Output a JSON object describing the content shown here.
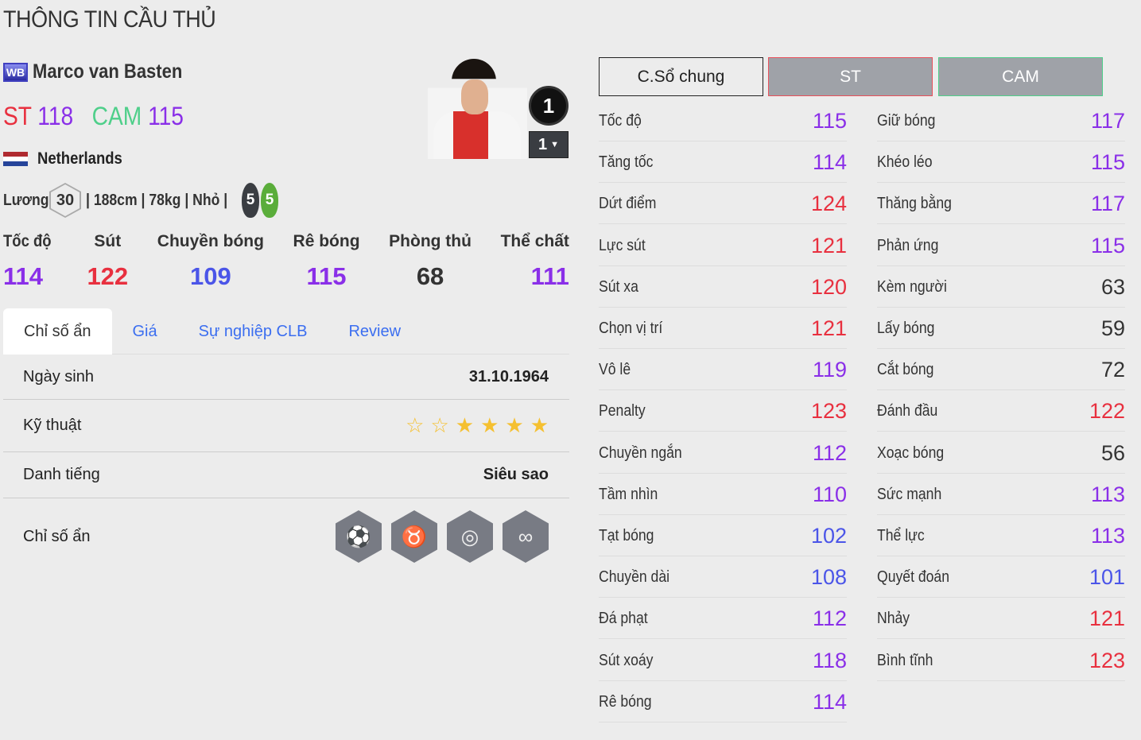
{
  "page_title": "THÔNG TIN CẦU THỦ",
  "player": {
    "season_badge": "WB",
    "name": "Marco van Basten",
    "positions": [
      {
        "pos": "ST",
        "ovr": "118",
        "pos_color": "#e8303f"
      },
      {
        "pos": "CAM",
        "ovr": "115",
        "pos_color": "#4fcf8a"
      }
    ],
    "nation": "Netherlands",
    "salary_label": "Lương",
    "salary": "30",
    "details": "| 188cm | 78kg | Nhỏ |",
    "weak_foot_left": "5",
    "weak_foot_right": "5",
    "jersey_number": "1",
    "upgrade_level": "1"
  },
  "summary": [
    {
      "label": "Tốc độ",
      "value": "114",
      "color": "purple"
    },
    {
      "label": "Sút",
      "value": "122",
      "color": "red"
    },
    {
      "label": "Chuyền bóng",
      "value": "109",
      "color": "blue"
    },
    {
      "label": "Rê bóng",
      "value": "115",
      "color": "purple"
    },
    {
      "label": "Phòng thủ",
      "value": "68",
      "color": "gray"
    },
    {
      "label": "Thể chất",
      "value": "111",
      "color": "purple"
    }
  ],
  "tabs": [
    "Chỉ số ẩn",
    "Giá",
    "Sự nghiệp CLB",
    "Review"
  ],
  "details": {
    "birth_label": "Ngày sinh",
    "birth": "31.10.1964",
    "skill_label": "Kỹ thuật",
    "skill_stars": 4,
    "skill_stars_max": 6,
    "fame_label": "Danh tiếng",
    "fame": "Siêu sao",
    "traits_label": "Chỉ số ẩn",
    "traits": [
      "goal-shot-icon",
      "buffalo-icon",
      "boot-swirl-icon",
      "dribble-path-icon"
    ]
  },
  "position_tabs": [
    "C.Sổ chung",
    "ST",
    "CAM"
  ],
  "stats_left": [
    [
      "Tốc độ",
      "115"
    ],
    [
      "Tăng tốc",
      "114"
    ],
    [
      "Dứt điểm",
      "124"
    ],
    [
      "Lực sút",
      "121"
    ],
    [
      "Sút xa",
      "120"
    ],
    [
      "Chọn vị trí",
      "121"
    ],
    [
      "Vô lê",
      "119"
    ],
    [
      "Penalty",
      "123"
    ],
    [
      "Chuyền ngắn",
      "112"
    ],
    [
      "Tầm nhìn",
      "110"
    ],
    [
      "Tạt bóng",
      "102"
    ],
    [
      "Chuyền dài",
      "108"
    ],
    [
      "Đá phạt",
      "112"
    ],
    [
      "Sút xoáy",
      "118"
    ],
    [
      "Rê bóng",
      "114"
    ]
  ],
  "stats_right": [
    [
      "Giữ bóng",
      "117"
    ],
    [
      "Khéo léo",
      "115"
    ],
    [
      "Thăng bằng",
      "117"
    ],
    [
      "Phản ứng",
      "115"
    ],
    [
      "Kèm người",
      "63"
    ],
    [
      "Lấy bóng",
      "59"
    ],
    [
      "Cắt bóng",
      "72"
    ],
    [
      "Đánh đầu",
      "122"
    ],
    [
      "Xoạc bóng",
      "56"
    ],
    [
      "Sức mạnh",
      "113"
    ],
    [
      "Thể lực",
      "113"
    ],
    [
      "Quyết đoán",
      "101"
    ],
    [
      "Nhảy",
      "121"
    ],
    [
      "Bình tĩnh",
      "123"
    ]
  ],
  "colors": {
    "red": "#e8303f",
    "purple": "#8a2fe8",
    "blue": "#4b55e8",
    "gray": "#333333",
    "st_border": "#e8505a",
    "cam_border": "#4fcf8a"
  }
}
